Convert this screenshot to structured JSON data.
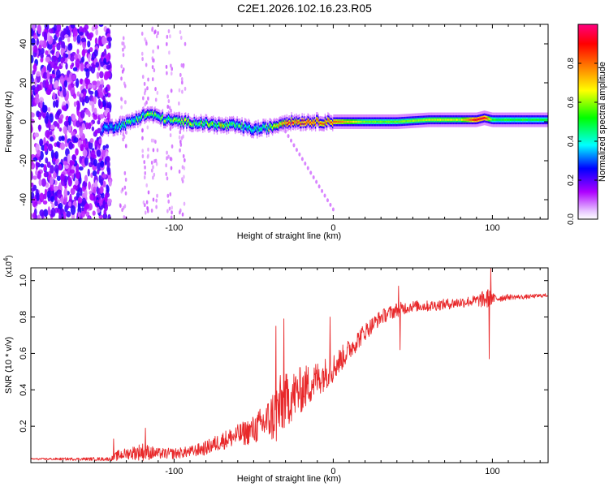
{
  "title": "C2E1.2026.102.16.23.R05",
  "chart_data": [
    {
      "type": "heatmap",
      "name": "spectrogram",
      "xlabel": "Height of straight line (km)",
      "ylabel": "Frequency (Hz)",
      "xlim": [
        -190,
        135
      ],
      "ylim": [
        -50,
        50
      ],
      "xticks": [
        -100,
        0,
        100
      ],
      "xtick_labels": [
        "-100",
        "0",
        "100"
      ],
      "yticks": [
        -40,
        -20,
        0,
        20,
        40
      ],
      "ytick_labels": [
        "-40",
        "-20",
        "0",
        "20",
        "40"
      ],
      "colorbar": {
        "label": "Normalized spectral amplitude",
        "range": [
          0,
          1
        ],
        "ticks": [
          0,
          0.2,
          0.4,
          0.6,
          0.8
        ],
        "tick_labels": [
          "0.0",
          "0.2",
          "0.4",
          "0.6",
          "0.8"
        ],
        "colormap": [
          "#ffffff",
          "#ae00ff",
          "#0000ff",
          "#00ffff",
          "#00ff00",
          "#ffff00",
          "#ff8000",
          "#ff0000",
          "#ff0080"
        ]
      },
      "ridge": {
        "x": [
          -140,
          -130,
          -120,
          -115,
          -105,
          -95,
          -80,
          -70,
          -60,
          -50,
          -40,
          -30,
          -20,
          -10,
          0,
          20,
          40,
          60,
          80,
          90,
          95,
          100,
          120,
          135
        ],
        "f": [
          -3,
          -1,
          3,
          4,
          1,
          0,
          -1,
          -2,
          -2,
          -4,
          -3,
          0,
          0,
          0,
          0,
          0,
          0,
          1,
          1,
          1,
          2,
          1,
          1,
          1
        ],
        "amplitude": [
          0.3,
          0.45,
          0.5,
          0.55,
          0.5,
          0.55,
          0.55,
          0.6,
          0.5,
          0.4,
          0.55,
          0.8,
          0.85,
          0.8,
          0.8,
          0.55,
          0.55,
          0.6,
          0.6,
          0.9,
          0.9,
          0.5,
          0.5,
          0.5
        ]
      },
      "annotation": "broadband noise below -140 km; weak drifting tail from -30 km to 0 km down to about -45 Hz"
    },
    {
      "type": "line",
      "name": "snr",
      "xlabel": "Height of straight line (km)",
      "ylabel": "SNR (10 * v/v)",
      "multiplier": "(x10",
      "multiplier_exp": "4",
      "multiplier_close": ")",
      "xlim": [
        -190,
        135
      ],
      "ylim": [
        0,
        1.07
      ],
      "xticks": [
        -100,
        0,
        100
      ],
      "xtick_labels": [
        "-100",
        "0",
        "100"
      ],
      "yticks": [
        0.2,
        0.4,
        0.6,
        0.8,
        1.0
      ],
      "ytick_labels": [
        "0.2",
        "0.4",
        "0.6",
        "0.8",
        "1.0"
      ],
      "color": "#e8282a",
      "envelope": {
        "x": [
          -190,
          -140,
          -135,
          -130,
          -120,
          -110,
          -100,
          -90,
          -80,
          -70,
          -60,
          -50,
          -40,
          -35,
          -30,
          -20,
          -10,
          0,
          10,
          20,
          30,
          40,
          50,
          60,
          70,
          80,
          90,
          97,
          100,
          110,
          120,
          135
        ],
        "mean": [
          0.02,
          0.02,
          0.04,
          0.05,
          0.06,
          0.05,
          0.05,
          0.06,
          0.08,
          0.12,
          0.15,
          0.18,
          0.24,
          0.28,
          0.34,
          0.4,
          0.46,
          0.52,
          0.62,
          0.72,
          0.8,
          0.84,
          0.86,
          0.86,
          0.87,
          0.88,
          0.89,
          0.9,
          0.9,
          0.91,
          0.91,
          0.92
        ],
        "noise": [
          0.005,
          0.01,
          0.03,
          0.03,
          0.05,
          0.03,
          0.03,
          0.03,
          0.04,
          0.05,
          0.06,
          0.08,
          0.12,
          0.2,
          0.15,
          0.13,
          0.1,
          0.08,
          0.06,
          0.05,
          0.04,
          0.04,
          0.03,
          0.03,
          0.03,
          0.03,
          0.03,
          0.06,
          0.03,
          0.015,
          0.012,
          0.01
        ]
      },
      "spikes": [
        {
          "x": -138,
          "y": 0.13
        },
        {
          "x": -118,
          "y": 0.19
        },
        {
          "x": -31,
          "y": 0.79
        },
        {
          "x": -36,
          "y": 0.75
        },
        {
          "x": -2,
          "y": 0.8
        },
        {
          "x": 41,
          "y": 0.97
        },
        {
          "x": 42,
          "y": 0.62
        },
        {
          "x": 99,
          "y": 1.07
        },
        {
          "x": 98,
          "y": 0.57
        }
      ]
    }
  ]
}
